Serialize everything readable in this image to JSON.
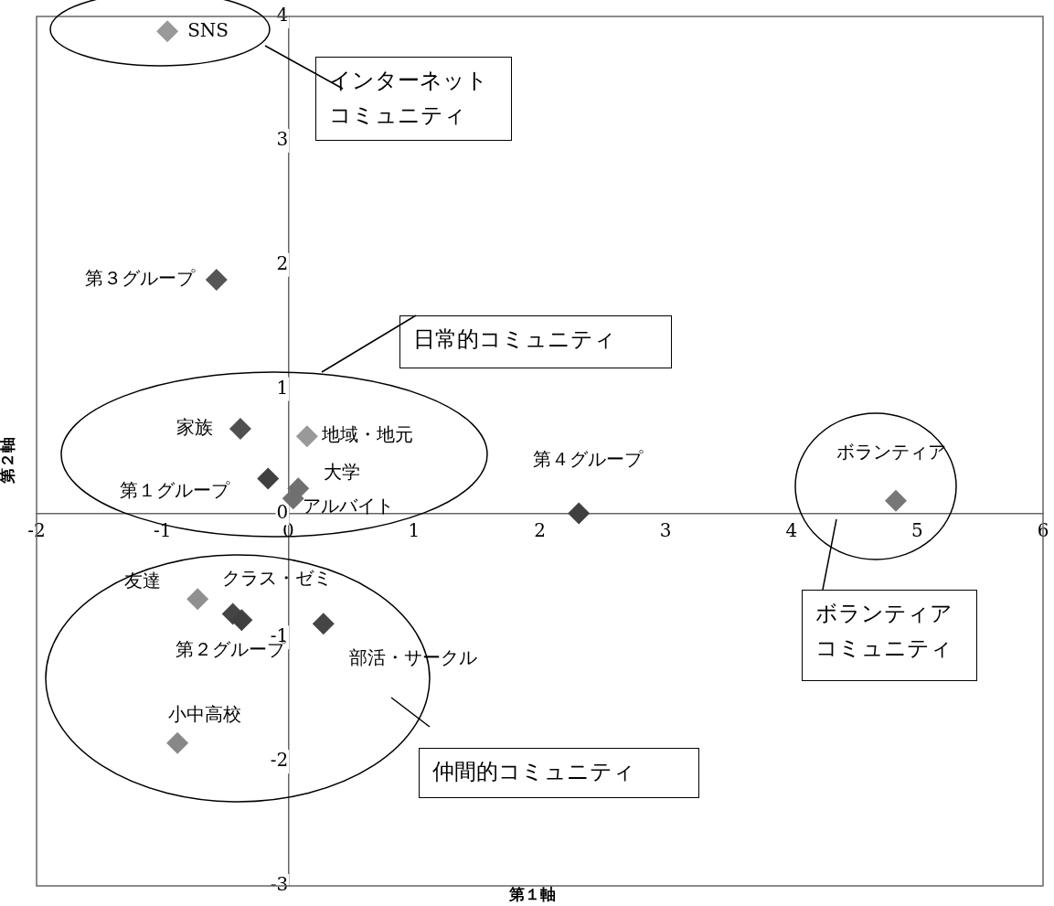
{
  "chart_data": {
    "type": "scatter",
    "xlabel": "第１軸",
    "ylabel": "第２軸",
    "xlim": [
      -2,
      6
    ],
    "xticks": [
      -2,
      -1,
      0,
      1,
      2,
      3,
      4,
      5,
      6
    ],
    "ylim": [
      -3,
      4
    ],
    "yticks": [
      -3,
      -2,
      -1,
      0,
      1,
      2,
      3,
      4
    ],
    "grid": false,
    "legend": false,
    "marker": "diamond",
    "series": [
      {
        "x": [
          -0.96,
          -0.57,
          0.15,
          -0.38,
          -0.16,
          0.08,
          0.04,
          2.31,
          4.83,
          -0.72,
          -0.44,
          -0.37,
          0.28,
          -0.88
        ],
        "values": [
          3.88,
          1.88,
          0.62,
          0.68,
          0.28,
          0.2,
          0.12,
          0,
          0.1,
          -0.69,
          -0.81,
          -0.86,
          -0.89,
          -1.85
        ],
        "colors": [
          "#999999",
          "#555555",
          "#999999",
          "#505050",
          "#404040",
          "#707070",
          "#707070",
          "#404040",
          "#777777",
          "#909090",
          "#454545",
          "#404040",
          "#454545",
          "#888888"
        ],
        "value_labels": [
          "SNS",
          "第３グループ",
          "地域・地元",
          "家族",
          "第１グループ",
          "大学",
          "アルバイト",
          "第４グループ",
          "ボランティア",
          "友達",
          "クラス・ゼミ",
          "第２グループ",
          "部活・サークル",
          "小中高校"
        ]
      }
    ],
    "annotations": [
      "インターネットコミュニティ",
      "日常的コミュニティ",
      "ボランティアコミュニティ",
      "仲間的コミュニティ"
    ]
  }
}
